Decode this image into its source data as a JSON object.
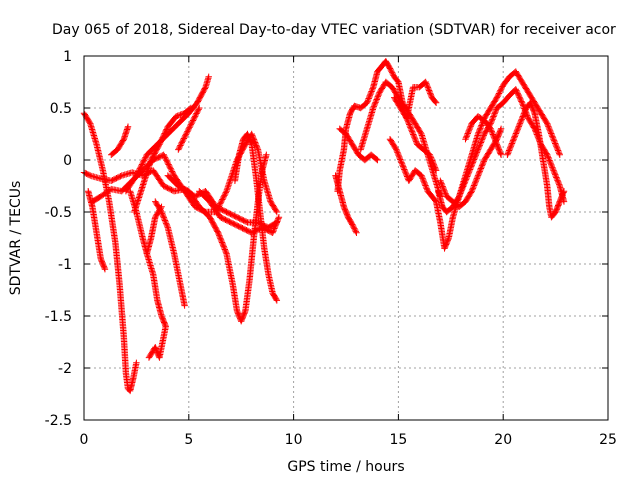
{
  "chart_data": {
    "type": "scatter",
    "title": "Day 065 of 2018, Sidereal Day-to-day VTEC variation (SDTVAR) for receiver acor",
    "xlabel": "GPS time / hours",
    "ylabel": "SDTVAR / TECUs",
    "xlim": [
      0,
      25
    ],
    "ylim": [
      -2.5,
      1
    ],
    "xticks": [
      "0",
      "5",
      "10",
      "15",
      "20",
      "25"
    ],
    "yticks": [
      "1",
      "0.5",
      "0",
      "-0.5",
      "-1",
      "-1.5",
      "-2",
      "-2.5"
    ],
    "grid": true,
    "marker": "+",
    "series_color": "#ff0000",
    "series": [
      {
        "name": "arc-1",
        "points": [
          [
            0.0,
            -0.12
          ],
          [
            0.3,
            -0.15
          ],
          [
            0.8,
            -0.18
          ],
          [
            1.3,
            -0.2
          ],
          [
            1.8,
            -0.15
          ],
          [
            2.3,
            -0.12
          ],
          [
            2.8,
            -0.15
          ],
          [
            3.3,
            -0.1
          ],
          [
            3.8,
            -0.25
          ],
          [
            4.3,
            -0.3
          ],
          [
            4.8,
            -0.28
          ],
          [
            5.3,
            -0.35
          ],
          [
            5.8,
            -0.3
          ],
          [
            6.3,
            -0.45
          ],
          [
            6.8,
            -0.5
          ],
          [
            7.3,
            -0.55
          ],
          [
            7.8,
            -0.6
          ],
          [
            8.3,
            -0.6
          ],
          [
            8.8,
            -0.65
          ],
          [
            9.2,
            -0.6
          ]
        ]
      },
      {
        "name": "arc-2",
        "points": [
          [
            0.0,
            0.45
          ],
          [
            0.3,
            0.35
          ],
          [
            0.6,
            0.15
          ],
          [
            0.9,
            -0.1
          ],
          [
            1.2,
            -0.4
          ],
          [
            1.5,
            -0.8
          ],
          [
            1.7,
            -1.2
          ],
          [
            1.9,
            -1.7
          ],
          [
            2.0,
            -2.05
          ],
          [
            2.1,
            -2.2
          ],
          [
            2.2,
            -2.22
          ],
          [
            2.35,
            -2.1
          ],
          [
            2.5,
            -1.95
          ]
        ]
      },
      {
        "name": "arc-3",
        "points": [
          [
            0.2,
            -0.3
          ],
          [
            0.4,
            -0.45
          ],
          [
            0.6,
            -0.7
          ],
          [
            0.8,
            -0.95
          ],
          [
            1.0,
            -1.05
          ]
        ]
      },
      {
        "name": "arc-4",
        "points": [
          [
            1.3,
            0.05
          ],
          [
            1.6,
            0.1
          ],
          [
            1.9,
            0.2
          ],
          [
            2.1,
            0.32
          ]
        ]
      },
      {
        "name": "arc-5",
        "points": [
          [
            0.4,
            -0.4
          ],
          [
            0.8,
            -0.35
          ],
          [
            1.3,
            -0.28
          ],
          [
            1.8,
            -0.3
          ],
          [
            2.3,
            -0.2
          ],
          [
            2.8,
            -0.1
          ],
          [
            3.3,
            0.0
          ],
          [
            3.8,
            0.05
          ],
          [
            4.3,
            -0.15
          ],
          [
            4.8,
            -0.3
          ],
          [
            5.3,
            -0.45
          ],
          [
            5.8,
            -0.5
          ],
          [
            6.3,
            -0.5
          ],
          [
            6.8,
            -0.3
          ],
          [
            7.3,
            0.0
          ],
          [
            7.7,
            0.15
          ],
          [
            8.0,
            0.25
          ],
          [
            8.3,
            0.1
          ],
          [
            8.6,
            -0.2
          ],
          [
            8.9,
            -0.4
          ],
          [
            9.2,
            -0.5
          ]
        ]
      },
      {
        "name": "arc-6",
        "points": [
          [
            2.0,
            -0.3
          ],
          [
            2.5,
            -0.15
          ],
          [
            3.0,
            0.05
          ],
          [
            3.5,
            0.15
          ],
          [
            4.0,
            0.25
          ],
          [
            4.5,
            0.35
          ],
          [
            5.0,
            0.45
          ],
          [
            5.4,
            0.55
          ],
          [
            5.8,
            0.7
          ],
          [
            5.95,
            0.8
          ]
        ]
      },
      {
        "name": "arc-7",
        "points": [
          [
            2.4,
            -0.5
          ],
          [
            2.8,
            -0.25
          ],
          [
            3.2,
            0.0
          ],
          [
            3.6,
            0.15
          ],
          [
            4.0,
            0.32
          ],
          [
            4.4,
            0.42
          ],
          [
            4.8,
            0.45
          ],
          [
            5.1,
            0.5
          ]
        ]
      },
      {
        "name": "arc-8",
        "points": [
          [
            2.2,
            -0.3
          ],
          [
            2.5,
            -0.5
          ],
          [
            2.8,
            -0.75
          ],
          [
            3.0,
            -0.9
          ],
          [
            3.2,
            -0.75
          ],
          [
            3.4,
            -0.55
          ],
          [
            3.7,
            -0.45
          ]
        ]
      },
      {
        "name": "arc-9",
        "points": [
          [
            3.4,
            -0.4
          ],
          [
            3.7,
            -0.5
          ],
          [
            4.0,
            -0.65
          ],
          [
            4.3,
            -0.9
          ],
          [
            4.6,
            -1.2
          ],
          [
            4.8,
            -1.4
          ]
        ]
      },
      {
        "name": "arc-10",
        "points": [
          [
            3.0,
            -0.9
          ],
          [
            3.3,
            -1.1
          ],
          [
            3.5,
            -1.35
          ],
          [
            3.7,
            -1.5
          ],
          [
            3.9,
            -1.6
          ],
          [
            3.6,
            -1.9
          ],
          [
            3.4,
            -1.8
          ],
          [
            3.1,
            -1.9
          ]
        ]
      },
      {
        "name": "arc-11",
        "points": [
          [
            4.5,
            0.1
          ],
          [
            5.0,
            0.3
          ],
          [
            5.5,
            0.5
          ]
        ]
      },
      {
        "name": "arc-12",
        "points": [
          [
            4.0,
            -0.15
          ],
          [
            4.5,
            -0.25
          ],
          [
            5.0,
            -0.3
          ],
          [
            5.5,
            -0.45
          ],
          [
            6.0,
            -0.55
          ],
          [
            6.4,
            -0.7
          ],
          [
            6.8,
            -0.9
          ],
          [
            7.1,
            -1.2
          ],
          [
            7.3,
            -1.45
          ],
          [
            7.5,
            -1.55
          ],
          [
            7.7,
            -1.45
          ],
          [
            7.9,
            -1.15
          ],
          [
            8.1,
            -0.75
          ],
          [
            8.3,
            -0.4
          ],
          [
            8.5,
            -0.1
          ],
          [
            8.7,
            0.05
          ]
        ]
      },
      {
        "name": "arc-13",
        "points": [
          [
            7.2,
            -0.2
          ],
          [
            7.4,
            0.05
          ],
          [
            7.6,
            0.2
          ],
          [
            7.8,
            0.25
          ],
          [
            8.0,
            0.15
          ],
          [
            8.2,
            -0.15
          ],
          [
            8.4,
            -0.5
          ],
          [
            8.6,
            -0.85
          ],
          [
            8.8,
            -1.1
          ],
          [
            9.0,
            -1.28
          ],
          [
            9.2,
            -1.35
          ]
        ]
      },
      {
        "name": "arc-14",
        "points": [
          [
            5.5,
            -0.3
          ],
          [
            6.0,
            -0.4
          ],
          [
            6.5,
            -0.55
          ],
          [
            7.0,
            -0.6
          ],
          [
            7.5,
            -0.65
          ],
          [
            8.0,
            -0.7
          ],
          [
            8.5,
            -0.65
          ],
          [
            9.0,
            -0.7
          ],
          [
            9.3,
            -0.55
          ]
        ]
      },
      {
        "name": "arc-15",
        "points": [
          [
            12.0,
            -0.15
          ],
          [
            12.2,
            -0.3
          ],
          [
            12.4,
            -0.45
          ],
          [
            12.6,
            -0.55
          ],
          [
            12.8,
            -0.62
          ],
          [
            13.0,
            -0.7
          ]
        ]
      },
      {
        "name": "arc-16",
        "points": [
          [
            12.1,
            -0.3
          ],
          [
            12.2,
            -0.1
          ],
          [
            12.4,
            0.1
          ],
          [
            12.5,
            0.3
          ],
          [
            12.7,
            0.45
          ],
          [
            12.9,
            0.52
          ],
          [
            13.2,
            0.5
          ],
          [
            13.5,
            0.55
          ],
          [
            13.8,
            0.7
          ],
          [
            14.0,
            0.85
          ],
          [
            14.2,
            0.9
          ],
          [
            14.4,
            0.95
          ],
          [
            14.6,
            0.88
          ],
          [
            14.8,
            0.8
          ],
          [
            15.0,
            0.75
          ],
          [
            15.2,
            0.55
          ],
          [
            15.5,
            0.45
          ],
          [
            15.8,
            0.35
          ],
          [
            16.1,
            0.25
          ],
          [
            16.4,
            0.05
          ],
          [
            16.7,
            -0.15
          ],
          [
            17.0,
            -0.35
          ]
        ]
      },
      {
        "name": "arc-17",
        "points": [
          [
            12.2,
            0.3
          ],
          [
            12.5,
            0.25
          ],
          [
            12.8,
            0.15
          ],
          [
            13.1,
            0.05
          ],
          [
            13.4,
            0.0
          ],
          [
            13.7,
            0.05
          ],
          [
            14.0,
            -0.0
          ]
        ]
      },
      {
        "name": "arc-18",
        "points": [
          [
            13.2,
            0.1
          ],
          [
            13.5,
            0.3
          ],
          [
            13.8,
            0.5
          ],
          [
            14.1,
            0.65
          ],
          [
            14.4,
            0.75
          ],
          [
            14.7,
            0.7
          ],
          [
            15.0,
            0.6
          ],
          [
            15.3,
            0.45
          ],
          [
            15.6,
            0.3
          ],
          [
            15.9,
            0.15
          ],
          [
            16.2,
            0.1
          ],
          [
            16.5,
            0.05
          ],
          [
            16.8,
            -0.1
          ]
        ]
      },
      {
        "name": "arc-19",
        "points": [
          [
            14.8,
            0.6
          ],
          [
            15.1,
            0.5
          ],
          [
            15.4,
            0.4
          ],
          [
            15.7,
            0.7
          ],
          [
            16.0,
            0.7
          ],
          [
            16.3,
            0.75
          ],
          [
            16.6,
            0.6
          ],
          [
            16.8,
            0.55
          ]
        ]
      },
      {
        "name": "arc-20",
        "points": [
          [
            14.6,
            0.2
          ],
          [
            14.9,
            0.1
          ],
          [
            15.2,
            -0.05
          ],
          [
            15.5,
            -0.2
          ],
          [
            15.8,
            -0.1
          ],
          [
            16.1,
            -0.15
          ],
          [
            16.4,
            -0.3
          ],
          [
            16.8,
            -0.4
          ],
          [
            17.0,
            -0.6
          ],
          [
            17.2,
            -0.85
          ],
          [
            17.4,
            -0.75
          ],
          [
            17.6,
            -0.55
          ],
          [
            17.9,
            -0.35
          ],
          [
            18.2,
            -0.2
          ],
          [
            18.5,
            -0.05
          ],
          [
            18.8,
            0.1
          ],
          [
            19.1,
            0.25
          ],
          [
            19.4,
            0.35
          ],
          [
            19.7,
            0.5
          ],
          [
            20.0,
            0.55
          ],
          [
            20.3,
            0.62
          ],
          [
            20.6,
            0.68
          ],
          [
            20.9,
            0.55
          ],
          [
            21.2,
            0.4
          ],
          [
            21.5,
            0.3
          ],
          [
            21.8,
            0.15
          ],
          [
            22.1,
            0.05
          ],
          [
            22.4,
            -0.1
          ],
          [
            22.7,
            -0.25
          ],
          [
            22.9,
            -0.4
          ]
        ]
      },
      {
        "name": "arc-21",
        "points": [
          [
            16.9,
            -0.3
          ],
          [
            17.1,
            -0.45
          ],
          [
            17.3,
            -0.5
          ],
          [
            17.6,
            -0.45
          ],
          [
            17.9,
            -0.35
          ],
          [
            18.2,
            -0.15
          ],
          [
            18.5,
            0.05
          ],
          [
            18.8,
            0.25
          ],
          [
            19.1,
            0.4
          ],
          [
            19.4,
            0.5
          ],
          [
            19.7,
            0.6
          ],
          [
            20.0,
            0.72
          ],
          [
            20.3,
            0.8
          ],
          [
            20.6,
            0.85
          ],
          [
            20.9,
            0.75
          ],
          [
            21.2,
            0.65
          ],
          [
            21.5,
            0.55
          ],
          [
            21.8,
            0.45
          ],
          [
            22.1,
            0.35
          ],
          [
            22.4,
            0.2
          ],
          [
            22.7,
            0.05
          ]
        ]
      },
      {
        "name": "arc-22",
        "points": [
          [
            17.0,
            -0.2
          ],
          [
            17.3,
            -0.35
          ],
          [
            17.6,
            -0.4
          ],
          [
            17.9,
            -0.45
          ],
          [
            18.2,
            -0.4
          ],
          [
            18.5,
            -0.3
          ],
          [
            18.8,
            -0.15
          ],
          [
            19.1,
            0.0
          ],
          [
            19.4,
            0.1
          ],
          [
            19.7,
            0.2
          ],
          [
            19.9,
            0.3
          ]
        ]
      },
      {
        "name": "arc-23",
        "points": [
          [
            18.2,
            0.2
          ],
          [
            18.5,
            0.35
          ],
          [
            18.8,
            0.42
          ],
          [
            19.1,
            0.38
          ],
          [
            19.4,
            0.3
          ],
          [
            19.7,
            0.15
          ],
          [
            19.9,
            0.05
          ]
        ]
      },
      {
        "name": "arc-24",
        "points": [
          [
            20.2,
            0.05
          ],
          [
            20.5,
            0.2
          ],
          [
            20.8,
            0.35
          ],
          [
            21.1,
            0.5
          ],
          [
            21.3,
            0.55
          ],
          [
            21.5,
            0.45
          ],
          [
            21.7,
            0.25
          ],
          [
            21.9,
            0.0
          ],
          [
            22.1,
            -0.25
          ],
          [
            22.2,
            -0.45
          ],
          [
            22.3,
            -0.55
          ],
          [
            22.5,
            -0.5
          ],
          [
            22.7,
            -0.4
          ],
          [
            22.9,
            -0.3
          ]
        ]
      }
    ]
  }
}
